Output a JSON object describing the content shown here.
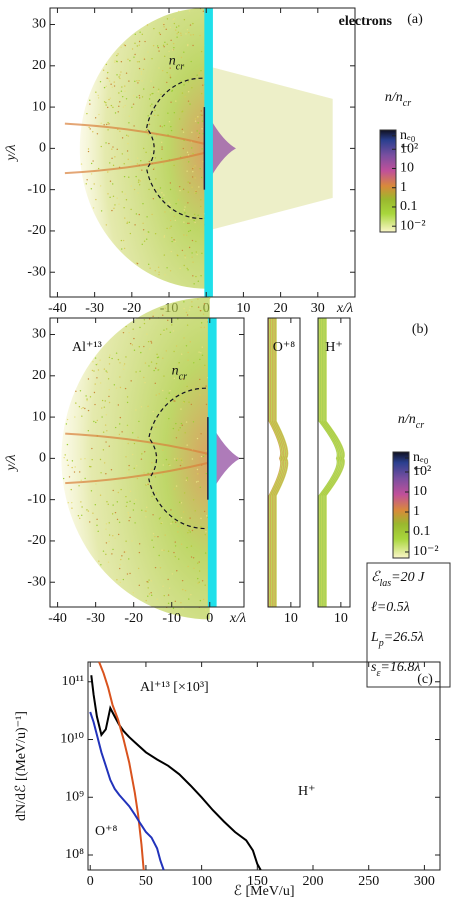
{
  "chart_data": [
    {
      "type": "density",
      "panel": "(a)",
      "species": "electrons",
      "xlabel": "x/λ",
      "ylabel": "y/λ",
      "xlim": [
        -42,
        40
      ],
      "ylim": [
        -36,
        34
      ],
      "xticks": [
        -40,
        -30,
        -20,
        -10,
        0,
        10,
        20,
        30
      ],
      "yticks": [
        -30,
        -20,
        -10,
        0,
        10,
        20,
        30
      ],
      "annotation": {
        "base": "n",
        "sub": "cr"
      },
      "colorbar": {
        "title": {
          "base": "n/n",
          "sub": "cr"
        },
        "log": true,
        "clim": [
          0.005,
          1000
        ],
        "ticks": [
          {
            "value": 500,
            "label": "nₑ₀"
          },
          {
            "value": 100,
            "label": "10²"
          },
          10,
          1,
          0.1,
          {
            "value": 0.01,
            "label": "10⁻²"
          }
        ]
      }
    },
    {
      "type": "density",
      "panel": "(b)",
      "species": "Al⁺¹³",
      "xlabel": "x/λ",
      "ylabel": "y/λ",
      "xlim": [
        -42,
        9
      ],
      "ylim": [
        -36,
        34
      ],
      "xticks": [
        -40,
        -30,
        -20,
        -10,
        0
      ],
      "yticks": [
        -30,
        -20,
        -10,
        0,
        10,
        20,
        30
      ],
      "annotation": {
        "base": "n",
        "sub": "cr"
      },
      "subpanels": [
        {
          "species": "O⁺⁸",
          "xlim": [
            0,
            14
          ],
          "xticks": [
            10
          ]
        },
        {
          "species": "H⁺",
          "xlim": [
            0,
            14
          ],
          "xticks": [
            10
          ]
        }
      ],
      "parameters": [
        {
          "base": "ℰ",
          "sub": "las",
          "rest": "=20 J"
        },
        "ℓ=0.5λ",
        {
          "base": "L",
          "sub": "p",
          "rest": "=26.5λ"
        },
        {
          "base": "s",
          "sub": "ε",
          "rest": "=16.8λ"
        }
      ],
      "colorbar": {
        "title": {
          "base": "n/n",
          "sub": "cr"
        },
        "log": true,
        "clim": [
          0.005,
          1000
        ],
        "ticks": [
          {
            "value": 500,
            "label": "nₑ₀"
          },
          {
            "value": 100,
            "label": "10²"
          },
          10,
          1,
          0.1,
          {
            "value": 0.01,
            "label": "10⁻²"
          }
        ]
      }
    },
    {
      "type": "line",
      "panel": "(c)",
      "xlabel": "ℰ [MeV/u]",
      "ylabel": "dN/dℰ [(MeV/u)⁻¹]",
      "log_y": true,
      "xlim": [
        -2,
        314
      ],
      "ylim": [
        55000000,
        220000000000
      ],
      "xticks": [
        0,
        50,
        100,
        150,
        200,
        250,
        300
      ],
      "yticks": [
        {
          "value": 100000000,
          "label": "10⁸"
        },
        {
          "value": 1000000000,
          "label": "10⁹"
        },
        {
          "value": 10000000000,
          "label": "10¹⁰"
        },
        {
          "value": 100000000000,
          "label": "10¹¹"
        }
      ],
      "series": [
        {
          "name": "H⁺",
          "color": "#000000",
          "x": [
            1,
            3,
            6,
            10,
            14,
            18,
            22,
            26,
            30,
            35,
            40,
            50,
            60,
            70,
            80,
            90,
            100,
            110,
            120,
            130,
            140,
            146,
            150,
            153
          ],
          "values": [
            130000000000,
            60000000000,
            25000000000,
            12000000000,
            15000000000,
            35000000000,
            25000000000,
            18000000000,
            14000000000,
            11000000000,
            9000000000,
            6000000000,
            4500000000,
            3500000000,
            2500000000,
            1600000000,
            1000000000,
            600000000,
            380000000,
            250000000,
            180000000,
            120000000,
            70000000,
            55000000
          ]
        },
        {
          "name": "Al⁺¹³ [×10³]",
          "color": "#d9531e",
          "x": [
            8,
            12,
            16,
            20,
            25,
            30,
            35,
            40,
            43,
            46,
            48
          ],
          "values": [
            220000000000,
            140000000000,
            80000000000,
            40000000000,
            22000000000,
            10000000000,
            4000000000,
            1200000000,
            500000000,
            150000000,
            55000000
          ]
        },
        {
          "name": "O⁺⁸",
          "color": "#2233bb",
          "x": [
            0,
            3,
            6,
            10,
            14,
            18,
            22,
            26,
            30,
            35,
            40,
            45,
            50,
            55,
            60,
            63,
            66
          ],
          "values": [
            30000000000,
            20000000000,
            12000000000,
            6000000000,
            3500000000,
            2000000000,
            1400000000,
            1100000000,
            900000000,
            700000000,
            500000000,
            350000000,
            250000000,
            200000000,
            130000000,
            80000000,
            55000000
          ]
        }
      ]
    }
  ]
}
